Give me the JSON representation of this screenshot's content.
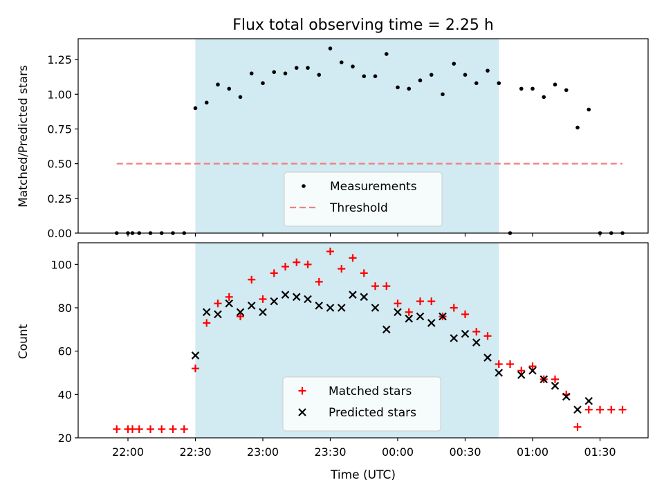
{
  "chart_data": [
    {
      "type": "scatter",
      "title": "Flux total observing time = 2.25 h",
      "xlabel": "",
      "ylabel": "Matched/Predicted stars",
      "ylim": [
        0,
        1.4
      ],
      "yticks": [
        "0.00",
        "0.25",
        "0.50",
        "0.75",
        "1.00",
        "1.25"
      ],
      "grid": false,
      "legend_position": "bottom-center",
      "shaded_region": {
        "from": "22:30",
        "to": "00:45",
        "color": "#add8e6"
      },
      "threshold": {
        "name": "Threshold",
        "value": 0.5,
        "from": "21:55",
        "to": "01:40",
        "color": "#f08080"
      },
      "series": [
        {
          "name": "Measurements",
          "marker": "dot",
          "color": "#000000",
          "x": [
            "21:55",
            "22:00",
            "22:02",
            "22:05",
            "22:10",
            "22:15",
            "22:20",
            "22:25",
            "22:30",
            "22:35",
            "22:40",
            "22:45",
            "22:50",
            "22:55",
            "23:00",
            "23:05",
            "23:10",
            "23:15",
            "23:20",
            "23:25",
            "23:30",
            "23:35",
            "23:40",
            "23:45",
            "23:50",
            "23:55",
            "00:00",
            "00:05",
            "00:10",
            "00:15",
            "00:20",
            "00:25",
            "00:30",
            "00:35",
            "00:40",
            "00:45",
            "00:50",
            "00:55",
            "01:00",
            "01:05",
            "01:10",
            "01:15",
            "01:20",
            "01:25",
            "01:30",
            "01:35",
            "01:40"
          ],
          "y": [
            0,
            0,
            0,
            0,
            0,
            0,
            0,
            0,
            0.9,
            0.94,
            1.07,
            1.04,
            0.98,
            1.15,
            1.08,
            1.16,
            1.15,
            1.19,
            1.19,
            1.14,
            1.33,
            1.23,
            1.2,
            1.13,
            1.13,
            1.29,
            1.05,
            1.04,
            1.1,
            1.14,
            1.0,
            1.22,
            1.14,
            1.08,
            1.17,
            1.08,
            0,
            1.04,
            1.04,
            0.98,
            1.07,
            1.03,
            0.76,
            0.89,
            0,
            0,
            0
          ]
        }
      ]
    },
    {
      "type": "scatter",
      "title": "",
      "xlabel": "Time (UTC)",
      "ylabel": "Count",
      "ylim": [
        20,
        110
      ],
      "yticks": [
        "20",
        "40",
        "60",
        "80",
        "100"
      ],
      "xticks": [
        "22:00",
        "22:30",
        "23:00",
        "23:30",
        "00:00",
        "00:30",
        "01:00",
        "01:30"
      ],
      "grid": false,
      "legend_position": "bottom-center",
      "shaded_region": {
        "from": "22:30",
        "to": "00:45",
        "color": "#add8e6"
      },
      "series": [
        {
          "name": "Matched stars",
          "marker": "plus",
          "color": "#ff0000",
          "x": [
            "21:55",
            "22:00",
            "22:02",
            "22:05",
            "22:10",
            "22:15",
            "22:20",
            "22:25",
            "22:30",
            "22:35",
            "22:40",
            "22:45",
            "22:50",
            "22:55",
            "23:00",
            "23:05",
            "23:10",
            "23:15",
            "23:20",
            "23:25",
            "23:30",
            "23:35",
            "23:40",
            "23:45",
            "23:50",
            "23:55",
            "00:00",
            "00:05",
            "00:10",
            "00:15",
            "00:20",
            "00:25",
            "00:30",
            "00:35",
            "00:40",
            "00:45",
            "00:50",
            "00:55",
            "01:00",
            "01:05",
            "01:10",
            "01:15",
            "01:20",
            "01:25",
            "01:30",
            "01:35",
            "01:40"
          ],
          "y": [
            24,
            24,
            24,
            24,
            24,
            24,
            24,
            24,
            52,
            73,
            82,
            85,
            76,
            93,
            84,
            96,
            99,
            101,
            100,
            92,
            106,
            98,
            103,
            96,
            90,
            90,
            82,
            78,
            83,
            83,
            76,
            80,
            77,
            69,
            67,
            54,
            54,
            51,
            53,
            47,
            47,
            40,
            25,
            33,
            33,
            33,
            33
          ]
        },
        {
          "name": "Predicted stars",
          "marker": "x",
          "color": "#000000",
          "x": [
            "22:30",
            "22:35",
            "22:40",
            "22:45",
            "22:50",
            "22:55",
            "23:00",
            "23:05",
            "23:10",
            "23:15",
            "23:20",
            "23:25",
            "23:30",
            "23:35",
            "23:40",
            "23:45",
            "23:50",
            "23:55",
            "00:00",
            "00:05",
            "00:10",
            "00:15",
            "00:20",
            "00:25",
            "00:30",
            "00:35",
            "00:40",
            "00:45",
            "00:55",
            "01:00",
            "01:05",
            "01:10",
            "01:15",
            "01:20",
            "01:25"
          ],
          "y": [
            58,
            78,
            77,
            82,
            78,
            81,
            78,
            83,
            86,
            85,
            84,
            81,
            80,
            80,
            86,
            85,
            80,
            70,
            78,
            75,
            76,
            73,
            76,
            66,
            68,
            64,
            57,
            50,
            49,
            51,
            47,
            44,
            39,
            33,
            37
          ]
        }
      ]
    }
  ]
}
